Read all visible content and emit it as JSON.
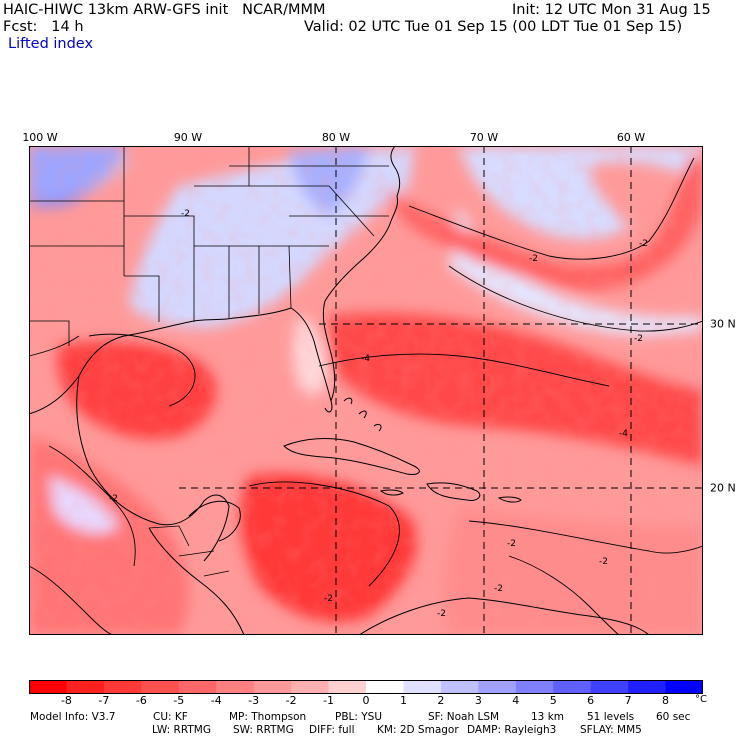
{
  "header": {
    "line1_left": "HAIC-HIWC 13km ARW-GFS init   NCAR/MMM",
    "line1_right": "Init: 12 UTC Mon 31 Aug 15",
    "line2_left": "Fcst:   14 h",
    "line2_right": "Valid: 02 UTC Tue 01 Sep 15 (00 LDT Tue 01 Sep 15)",
    "field_name": "Lifted index"
  },
  "map": {
    "lon_labels": [
      "100 W",
      "90 W",
      "80 W",
      "70 W",
      "60 W"
    ],
    "lat_labels": [
      "30 N",
      "20 N"
    ],
    "contour_labels": [
      "-2",
      "-2",
      "-2",
      "-2",
      "-2",
      "-4",
      "-4",
      "-2",
      "-2",
      "-2",
      "-2",
      "-2"
    ],
    "colors": {
      "strong_unstable": "#ff2020",
      "moderate_unstable": "#ff7070",
      "weak_unstable": "#ffb8b8",
      "neutral": "#fff0f0",
      "weak_stable": "#d0d4ff",
      "strong_stable": "#5c6cff"
    }
  },
  "colorbar": {
    "ticks": [
      "-8",
      "-7",
      "-6",
      "-5",
      "-4",
      "-3",
      "-2",
      "-1",
      "0",
      "1",
      "2",
      "3",
      "4",
      "5",
      "6",
      "7",
      "8"
    ],
    "unit": "°C",
    "colors": [
      "#ff0000",
      "#ff2020",
      "#ff3838",
      "#ff5050",
      "#ff6868",
      "#ff8080",
      "#ff9898",
      "#ffb0b0",
      "#ffd0d0",
      "#ffffff",
      "#e0e0ff",
      "#c0c0ff",
      "#a0a0ff",
      "#8080ff",
      "#6060ff",
      "#4040ff",
      "#2020ff",
      "#0000ff"
    ]
  },
  "model_info": {
    "line1": [
      {
        "key": "label",
        "text": "Model Info: V3.7"
      },
      {
        "key": "cu",
        "text": "CU: KF"
      },
      {
        "key": "mp",
        "text": "MP: Thompson"
      },
      {
        "key": "pbl",
        "text": "PBL: YSU"
      },
      {
        "key": "sf",
        "text": "SF: Noah LSM"
      },
      {
        "key": "res",
        "text": "13 km"
      },
      {
        "key": "levels",
        "text": "51 levels"
      },
      {
        "key": "dt",
        "text": "60 sec"
      }
    ],
    "line2": [
      {
        "key": "lw",
        "text": "LW: RRTMG"
      },
      {
        "key": "sw",
        "text": "SW: RRTMG"
      },
      {
        "key": "diff",
        "text": "DIFF: full"
      },
      {
        "key": "km",
        "text": "KM: 2D Smagor"
      },
      {
        "key": "damp",
        "text": "DAMP: Rayleigh3"
      },
      {
        "key": "sflay",
        "text": "SFLAY: MM5"
      }
    ]
  }
}
